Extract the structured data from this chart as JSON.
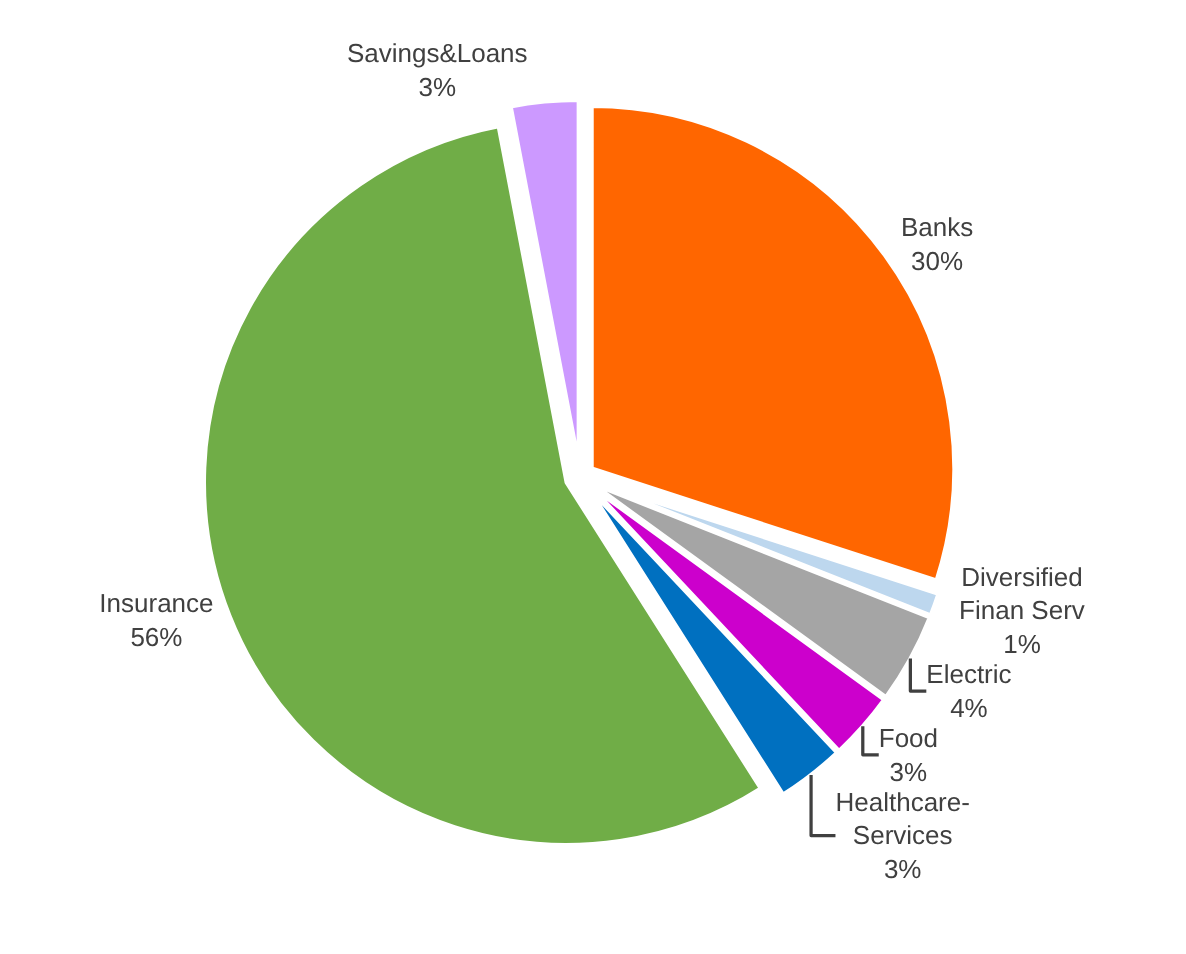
{
  "chart_data": {
    "type": "pie",
    "categories": [
      "Banks",
      "Diversified Finan Serv",
      "Electric",
      "Food",
      "Healthcare-Services",
      "Insurance",
      "Savings&Loans"
    ],
    "values": [
      30,
      1,
      4,
      3,
      3,
      56,
      3
    ],
    "value_labels": [
      "30%",
      "1%",
      "4%",
      "3%",
      "3%",
      "56%",
      "3%"
    ],
    "colors": [
      "#ff6600",
      "#bdd7ee",
      "#a5a5a5",
      "#cc00cc",
      "#0070c0",
      "#70ad47",
      "#cc99ff"
    ],
    "legend": false
  }
}
